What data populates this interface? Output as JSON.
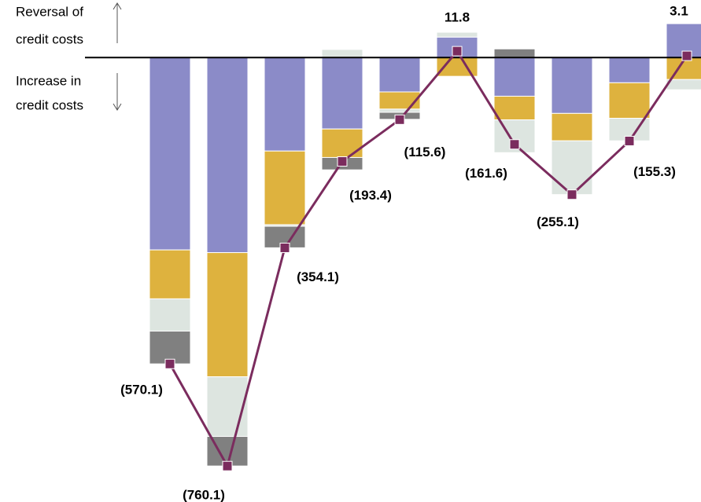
{
  "chart_data": {
    "type": "stacked-bar-line",
    "annotations": [
      {
        "lines": [
          "Reversal of",
          "credit costs"
        ]
      },
      {
        "lines": [
          "Increase in",
          "credit costs"
        ]
      }
    ],
    "categories": [
      null,
      null,
      null,
      null,
      null,
      null,
      null,
      null,
      null,
      null
    ],
    "series": [
      {
        "color": "#8b8bc8",
        "values": [
          -358,
          -363,
          -174,
          -133,
          -64,
          38,
          -72,
          -104,
          -47,
          63
        ]
      },
      {
        "color": "#deb23e",
        "values": [
          -91,
          -231,
          -137,
          -53,
          -32,
          -35,
          -44,
          -51,
          -66,
          -41
        ]
      },
      {
        "color": "#dde5e0",
        "values": [
          -60,
          -111,
          -3,
          15,
          -6,
          9,
          -61,
          -100,
          -42,
          -19
        ]
      },
      {
        "color": "#808080",
        "values": [
          -61,
          -55,
          -40,
          -23,
          -13,
          null,
          16,
          null,
          null,
          null
        ]
      }
    ],
    "line": {
      "color": "#7b2c5e",
      "values": [
        -570.1,
        -760.1,
        -354.1,
        -193.4,
        -115.6,
        11.8,
        -161.6,
        -255.1,
        -155.3,
        3.1
      ],
      "value_labels": [
        "(570.1)",
        "(760.1)",
        "(354.1)",
        "(193.4)",
        "(115.6)",
        "11.8",
        "(161.6)",
        "(255.1)",
        "(155.3)",
        "3.1"
      ]
    },
    "ylim": [
      -827,
      107
    ]
  }
}
